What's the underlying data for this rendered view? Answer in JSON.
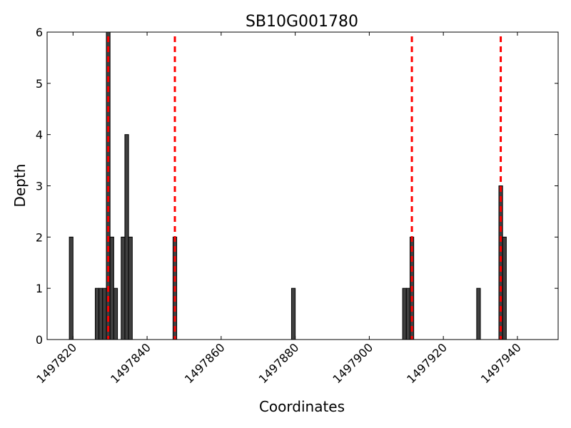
{
  "chart_data": {
    "type": "bar",
    "title": "SB10G001780",
    "xlabel": "Coordinates",
    "ylabel": "Depth",
    "xlim": [
      1497813,
      1497951
    ],
    "ylim": [
      0,
      6
    ],
    "xticks": [
      1497820,
      1497840,
      1497860,
      1497880,
      1497900,
      1497920,
      1497940
    ],
    "yticks": [
      0,
      1,
      2,
      3,
      4,
      5,
      6
    ],
    "bar_width": 1,
    "bar_color": "#404040",
    "bars": [
      {
        "x": 1497819,
        "y": 2
      },
      {
        "x": 1497826,
        "y": 1
      },
      {
        "x": 1497827,
        "y": 1
      },
      {
        "x": 1497828,
        "y": 1
      },
      {
        "x": 1497829,
        "y": 6
      },
      {
        "x": 1497830,
        "y": 2
      },
      {
        "x": 1497831,
        "y": 1
      },
      {
        "x": 1497833,
        "y": 2
      },
      {
        "x": 1497834,
        "y": 4
      },
      {
        "x": 1497835,
        "y": 2
      },
      {
        "x": 1497847,
        "y": 2
      },
      {
        "x": 1497879,
        "y": 1
      },
      {
        "x": 1497909,
        "y": 1
      },
      {
        "x": 1497910,
        "y": 1
      },
      {
        "x": 1497911,
        "y": 2
      },
      {
        "x": 1497929,
        "y": 1
      },
      {
        "x": 1497935,
        "y": 3
      },
      {
        "x": 1497936,
        "y": 2
      }
    ],
    "reference_lines": {
      "orientation": "vertical",
      "style": "dashed",
      "color": "#ff0000",
      "x": [
        1497829.5,
        1497847.5,
        1497911.5,
        1497935.5
      ]
    }
  }
}
